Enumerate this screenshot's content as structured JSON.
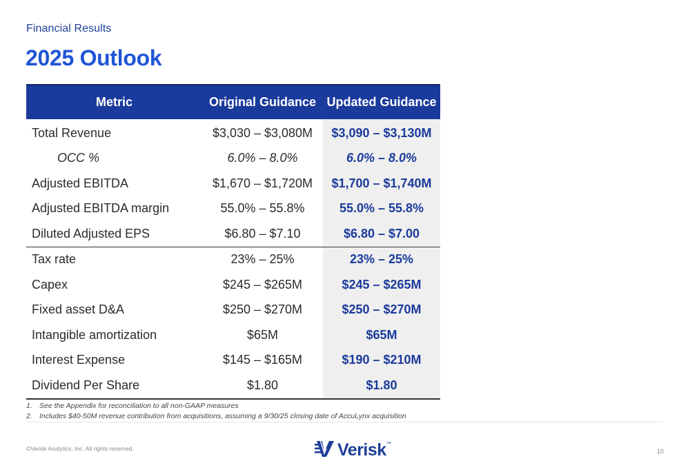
{
  "header": {
    "section_label": "Financial Results",
    "title": "2025 Outlook"
  },
  "table": {
    "columns": [
      "Metric",
      "Original Guidance",
      "Updated Guidance"
    ],
    "rows": [
      {
        "metric": "Total Revenue",
        "original": "$3,030 – $3,080M",
        "updated": "$3,090 – $3,130M"
      },
      {
        "metric": "OCC %",
        "original": "6.0% – 8.0%",
        "updated": "6.0% – 8.0%"
      },
      {
        "metric": "Adjusted EBITDA",
        "original": "$1,670 – $1,720M",
        "updated": "$1,700 – $1,740M"
      },
      {
        "metric": "Adjusted EBITDA margin",
        "original": "55.0% – 55.8%",
        "updated": "55.0% – 55.8%"
      },
      {
        "metric": "Diluted Adjusted EPS",
        "original": "$6.80 – $7.10",
        "updated": "$6.80 – $7.00"
      },
      {
        "metric": "Tax rate",
        "original": "23% – 25%",
        "updated": "23% – 25%"
      },
      {
        "metric": "Capex",
        "original": "$245 – $265M",
        "updated": "$245 – $265M"
      },
      {
        "metric": "Fixed asset D&A",
        "original": "$250 – $270M",
        "updated": "$250 – $270M"
      },
      {
        "metric": "Intangible amortization",
        "original": "$65M",
        "updated": "$65M"
      },
      {
        "metric": "Interest Expense",
        "original": "$145 – $165M",
        "updated": "$190 – $210M"
      },
      {
        "metric": "Dividend Per Share",
        "original": "$1.80",
        "updated": "$1.80"
      }
    ]
  },
  "footnotes": [
    {
      "num": "1.",
      "text": "See the Appendix for reconciliation to all non-GAAP measures"
    },
    {
      "num": "2.",
      "text": "Includes $40-50M revenue contribution from acquisitions, assuming a 9/30/25 closing date of AccuLynx acquisition"
    }
  ],
  "footer": {
    "copyright": "©Verisk Analytics, Inc. All rights reserved.",
    "logo_text": "Verisk",
    "logo_tm": "™",
    "page_number": "10"
  },
  "colors": {
    "brand_blue": "#1a3a9c",
    "title_blue": "#1f55d6",
    "updated_column_bg": "#efefef"
  }
}
